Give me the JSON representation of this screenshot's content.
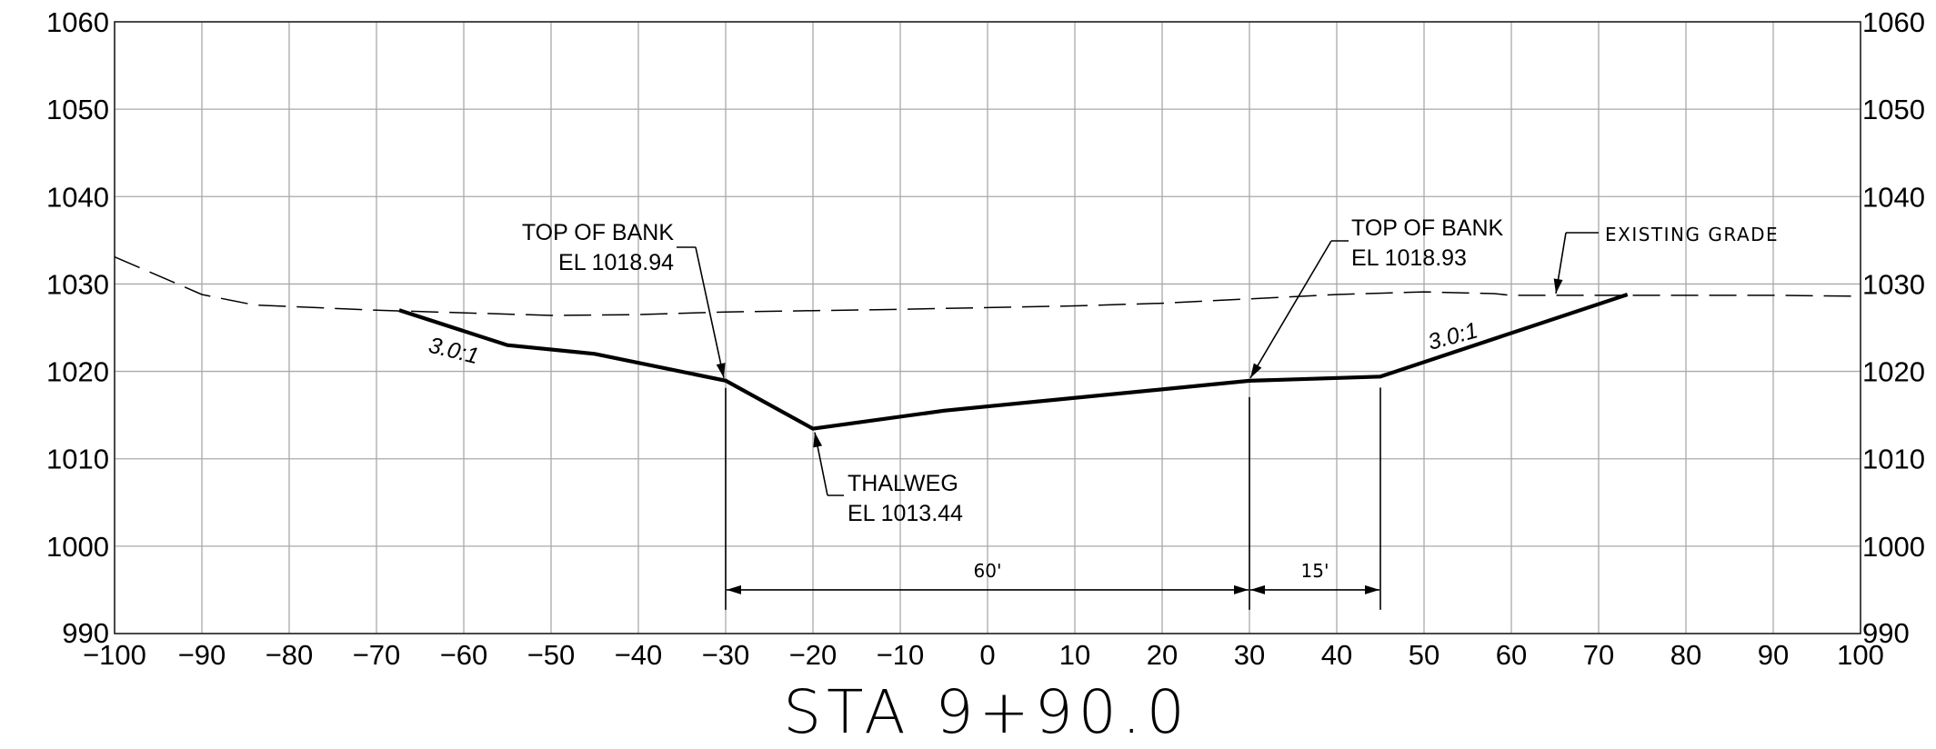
{
  "chart_data": {
    "type": "line",
    "title": "STA 9+90.0",
    "xlim": [
      -100,
      100
    ],
    "ylim": [
      990,
      1060
    ],
    "x_ticks": [
      -100,
      -90,
      -80,
      -70,
      -60,
      -50,
      -40,
      -30,
      -20,
      -10,
      0,
      10,
      20,
      30,
      40,
      50,
      60,
      70,
      80,
      90,
      100
    ],
    "y_ticks": [
      990,
      1000,
      1010,
      1020,
      1030,
      1040,
      1050,
      1060
    ],
    "grid": true,
    "series": [
      {
        "style": "dashed",
        "x": [
          -100,
          -90,
          -84,
          -70,
          -50,
          -40,
          -30,
          -10,
          0,
          10,
          20,
          30,
          40,
          50,
          58,
          60,
          70,
          80,
          90,
          100
        ],
        "y": [
          1033.1,
          1028.8,
          1027.6,
          1027.0,
          1026.4,
          1026.5,
          1026.8,
          1027.1,
          1027.3,
          1027.5,
          1027.8,
          1028.3,
          1028.8,
          1029.1,
          1028.9,
          1028.7,
          1028.7,
          1028.7,
          1028.7,
          1028.6
        ]
      },
      {
        "style": "solid-heavy",
        "x": [
          -67.4,
          -55,
          -45,
          -30,
          -20,
          -5,
          30,
          45,
          73.3
        ],
        "y": [
          1027.0,
          1023.0,
          1022.0,
          1018.94,
          1013.44,
          1015.5,
          1018.93,
          1019.4,
          1028.8
        ]
      }
    ],
    "annotations": [
      {
        "lines": [
          "TOP OF BANK",
          "EL 1018.94"
        ],
        "point": [
          -30,
          1018.94
        ]
      },
      {
        "lines": [
          "TOP OF BANK",
          "EL 1018.93"
        ],
        "point": [
          30,
          1018.93
        ]
      },
      {
        "lines": [
          "THALWEG",
          "EL 1013.44"
        ],
        "point": [
          -20,
          1013.44
        ]
      },
      {
        "lines": [
          "EXISTING GRADE"
        ],
        "point": [
          65,
          1028.7
        ]
      }
    ],
    "slope_labels": [
      "3.0:1",
      "3.0:1"
    ],
    "dimensions": [
      {
        "text": "60'",
        "from": -30,
        "to": 30,
        "y": 995
      },
      {
        "text": "15'",
        "from": 30,
        "to": 45,
        "y": 995
      }
    ]
  }
}
